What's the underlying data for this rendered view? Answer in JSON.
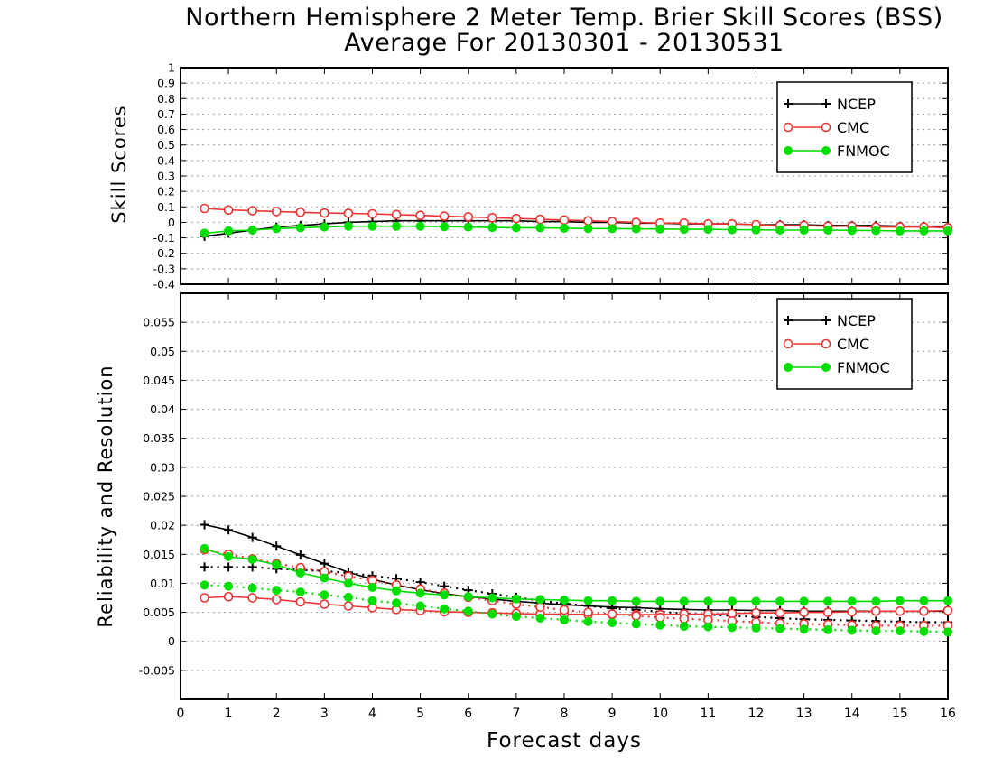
{
  "title": {
    "line1": "Northern Hemisphere 2 Meter Temp. Brier Skill Scores (BSS)",
    "line2": "Average For 20130301 - 20130531"
  },
  "xlabel": "Forecast days",
  "colors": {
    "NCEP": "#000000",
    "CMC": "#ee3333",
    "FNMOC": "#00dd00"
  },
  "chart_data": [
    {
      "type": "line",
      "ylabel": "Skill Scores",
      "xlim": [
        0,
        16
      ],
      "ylim": [
        -0.4,
        1
      ],
      "yticks": [
        "1",
        "0.9",
        "0.8",
        "0.7",
        "0.6",
        "0.5",
        "0.4",
        "0.3",
        "0.2",
        "0.1",
        "0",
        "-0.1",
        "-0.2",
        "-0.3",
        "-0.4"
      ],
      "ytick_values": [
        1,
        0.9,
        0.8,
        0.7,
        0.6,
        0.5,
        0.4,
        0.3,
        0.2,
        0.1,
        0,
        -0.1,
        -0.2,
        -0.3,
        -0.4
      ],
      "grid": true,
      "legend": "top-right",
      "legend_entries": [
        "NCEP",
        "CMC",
        "FNMOC"
      ],
      "x": [
        0.5,
        1,
        1.5,
        2,
        2.5,
        3,
        3.5,
        4,
        4.5,
        5,
        5.5,
        6,
        6.5,
        7,
        7.5,
        8,
        8.5,
        9,
        9.5,
        10,
        10.5,
        11,
        11.5,
        12,
        12.5,
        13,
        13.5,
        14,
        14.5,
        15,
        15.5,
        16
      ],
      "series": [
        {
          "name": "NCEP",
          "style": "solid",
          "marker": "plus",
          "values": [
            -0.09,
            -0.07,
            -0.05,
            -0.03,
            -0.02,
            -0.01,
            0.0,
            0.005,
            0.01,
            0.01,
            0.01,
            0.01,
            0.01,
            0.01,
            0.005,
            0.005,
            0.0,
            0.0,
            -0.005,
            -0.005,
            -0.01,
            -0.01,
            -0.01,
            -0.015,
            -0.015,
            -0.015,
            -0.02,
            -0.02,
            -0.02,
            -0.025,
            -0.025,
            -0.025
          ]
        },
        {
          "name": "CMC",
          "style": "solid",
          "marker": "open-circle",
          "values": [
            0.09,
            0.08,
            0.075,
            0.07,
            0.065,
            0.06,
            0.058,
            0.055,
            0.05,
            0.045,
            0.04,
            0.035,
            0.03,
            0.025,
            0.02,
            0.015,
            0.01,
            0.005,
            0.0,
            -0.005,
            -0.005,
            -0.01,
            -0.01,
            -0.015,
            -0.02,
            -0.02,
            -0.025,
            -0.025,
            -0.03,
            -0.03,
            -0.03,
            -0.035
          ]
        },
        {
          "name": "FNMOC",
          "style": "solid",
          "marker": "filled-circle",
          "values": [
            -0.07,
            -0.055,
            -0.05,
            -0.04,
            -0.035,
            -0.03,
            -0.025,
            -0.025,
            -0.025,
            -0.025,
            -0.028,
            -0.03,
            -0.033,
            -0.035,
            -0.035,
            -0.038,
            -0.04,
            -0.04,
            -0.042,
            -0.043,
            -0.045,
            -0.045,
            -0.047,
            -0.048,
            -0.05,
            -0.05,
            -0.05,
            -0.052,
            -0.053,
            -0.055,
            -0.055,
            -0.055
          ]
        }
      ]
    },
    {
      "type": "line",
      "ylabel": "Reliability and Resolution",
      "xlabel": "Forecast days",
      "xlim": [
        0,
        16
      ],
      "xticks": [
        "0",
        "1",
        "2",
        "3",
        "4",
        "5",
        "6",
        "7",
        "8",
        "9",
        "10",
        "11",
        "12",
        "13",
        "14",
        "15",
        "16"
      ],
      "ylim": [
        -0.01,
        0.06
      ],
      "yticks": [
        "0.055",
        "0.05",
        "0.045",
        "0.04",
        "0.035",
        "0.03",
        "0.025",
        "0.02",
        "0.015",
        "0.01",
        "0.005",
        "0",
        "-0.005"
      ],
      "ytick_values": [
        0.055,
        0.05,
        0.045,
        0.04,
        0.035,
        0.03,
        0.025,
        0.02,
        0.015,
        0.01,
        0.005,
        0,
        -0.005
      ],
      "grid": true,
      "legend": "top-right",
      "legend_entries": [
        "NCEP",
        "CMC",
        "FNMOC"
      ],
      "x": [
        0.5,
        1,
        1.5,
        2,
        2.5,
        3,
        3.5,
        4,
        4.5,
        5,
        5.5,
        6,
        6.5,
        7,
        7.5,
        8,
        8.5,
        9,
        9.5,
        10,
        10.5,
        11,
        11.5,
        12,
        12.5,
        13,
        13.5,
        14,
        14.5,
        15,
        15.5,
        16
      ],
      "series": [
        {
          "name": "NCEP",
          "style": "solid",
          "marker": "plus",
          "values": [
            0.0201,
            0.0192,
            0.0179,
            0.0164,
            0.0149,
            0.0134,
            0.0119,
            0.0107,
            0.0097,
            0.0089,
            0.0082,
            0.0077,
            0.0073,
            0.0069,
            0.0066,
            0.0063,
            0.0061,
            0.0059,
            0.0058,
            0.0056,
            0.0055,
            0.0054,
            0.0054,
            0.0053,
            0.0053,
            0.0052,
            0.0052,
            0.0052,
            0.0052,
            0.0052,
            0.0052,
            0.0052
          ]
        },
        {
          "name": "NCEP",
          "style": "dotted",
          "marker": "plus",
          "values": [
            0.0128,
            0.0128,
            0.0128,
            0.0125,
            0.0123,
            0.0121,
            0.0118,
            0.0113,
            0.0108,
            0.0102,
            0.0095,
            0.0088,
            0.0082,
            0.0076,
            0.007,
            0.0065,
            0.0061,
            0.0057,
            0.0054,
            0.0051,
            0.0048,
            0.0046,
            0.0044,
            0.0042,
            0.004,
            0.0038,
            0.0037,
            0.0036,
            0.0035,
            0.0034,
            0.0033,
            0.0033
          ]
        },
        {
          "name": "CMC",
          "style": "solid",
          "marker": "open-circle",
          "values": [
            0.0075,
            0.0077,
            0.0075,
            0.0072,
            0.0068,
            0.0064,
            0.0061,
            0.0058,
            0.0055,
            0.0053,
            0.0051,
            0.005,
            0.0049,
            0.0048,
            0.0047,
            0.0047,
            0.0046,
            0.0046,
            0.0046,
            0.0046,
            0.0047,
            0.0047,
            0.0048,
            0.0049,
            0.0049,
            0.005,
            0.005,
            0.0051,
            0.0052,
            0.0052,
            0.0052,
            0.0053
          ]
        },
        {
          "name": "CMC",
          "style": "dotted",
          "marker": "open-circle",
          "values": [
            0.0158,
            0.015,
            0.0142,
            0.0134,
            0.0127,
            0.012,
            0.0112,
            0.0105,
            0.0097,
            0.009,
            0.0083,
            0.0076,
            0.007,
            0.0064,
            0.0059,
            0.0054,
            0.005,
            0.0047,
            0.0044,
            0.0041,
            0.0039,
            0.0037,
            0.0035,
            0.0033,
            0.0031,
            0.003,
            0.0029,
            0.0028,
            0.0027,
            0.0027,
            0.0027,
            0.0027
          ]
        },
        {
          "name": "FNMOC",
          "style": "solid",
          "marker": "filled-circle",
          "values": [
            0.016,
            0.0146,
            0.0141,
            0.0132,
            0.0118,
            0.0109,
            0.01,
            0.0093,
            0.0087,
            0.0083,
            0.008,
            0.0077,
            0.0075,
            0.0073,
            0.0072,
            0.0071,
            0.007,
            0.007,
            0.0069,
            0.0069,
            0.0069,
            0.0069,
            0.0069,
            0.0069,
            0.0069,
            0.0069,
            0.0069,
            0.0069,
            0.0069,
            0.007,
            0.007,
            0.007
          ]
        },
        {
          "name": "FNMOC",
          "style": "dotted",
          "marker": "filled-circle",
          "values": [
            0.0097,
            0.0095,
            0.0092,
            0.0088,
            0.0085,
            0.008,
            0.0076,
            0.007,
            0.0066,
            0.0061,
            0.0056,
            0.0052,
            0.0047,
            0.0043,
            0.004,
            0.0037,
            0.0034,
            0.0032,
            0.003,
            0.0028,
            0.0026,
            0.0025,
            0.0024,
            0.0023,
            0.0022,
            0.0021,
            0.002,
            0.0019,
            0.0018,
            0.0018,
            0.0017,
            0.0016
          ]
        }
      ]
    }
  ]
}
